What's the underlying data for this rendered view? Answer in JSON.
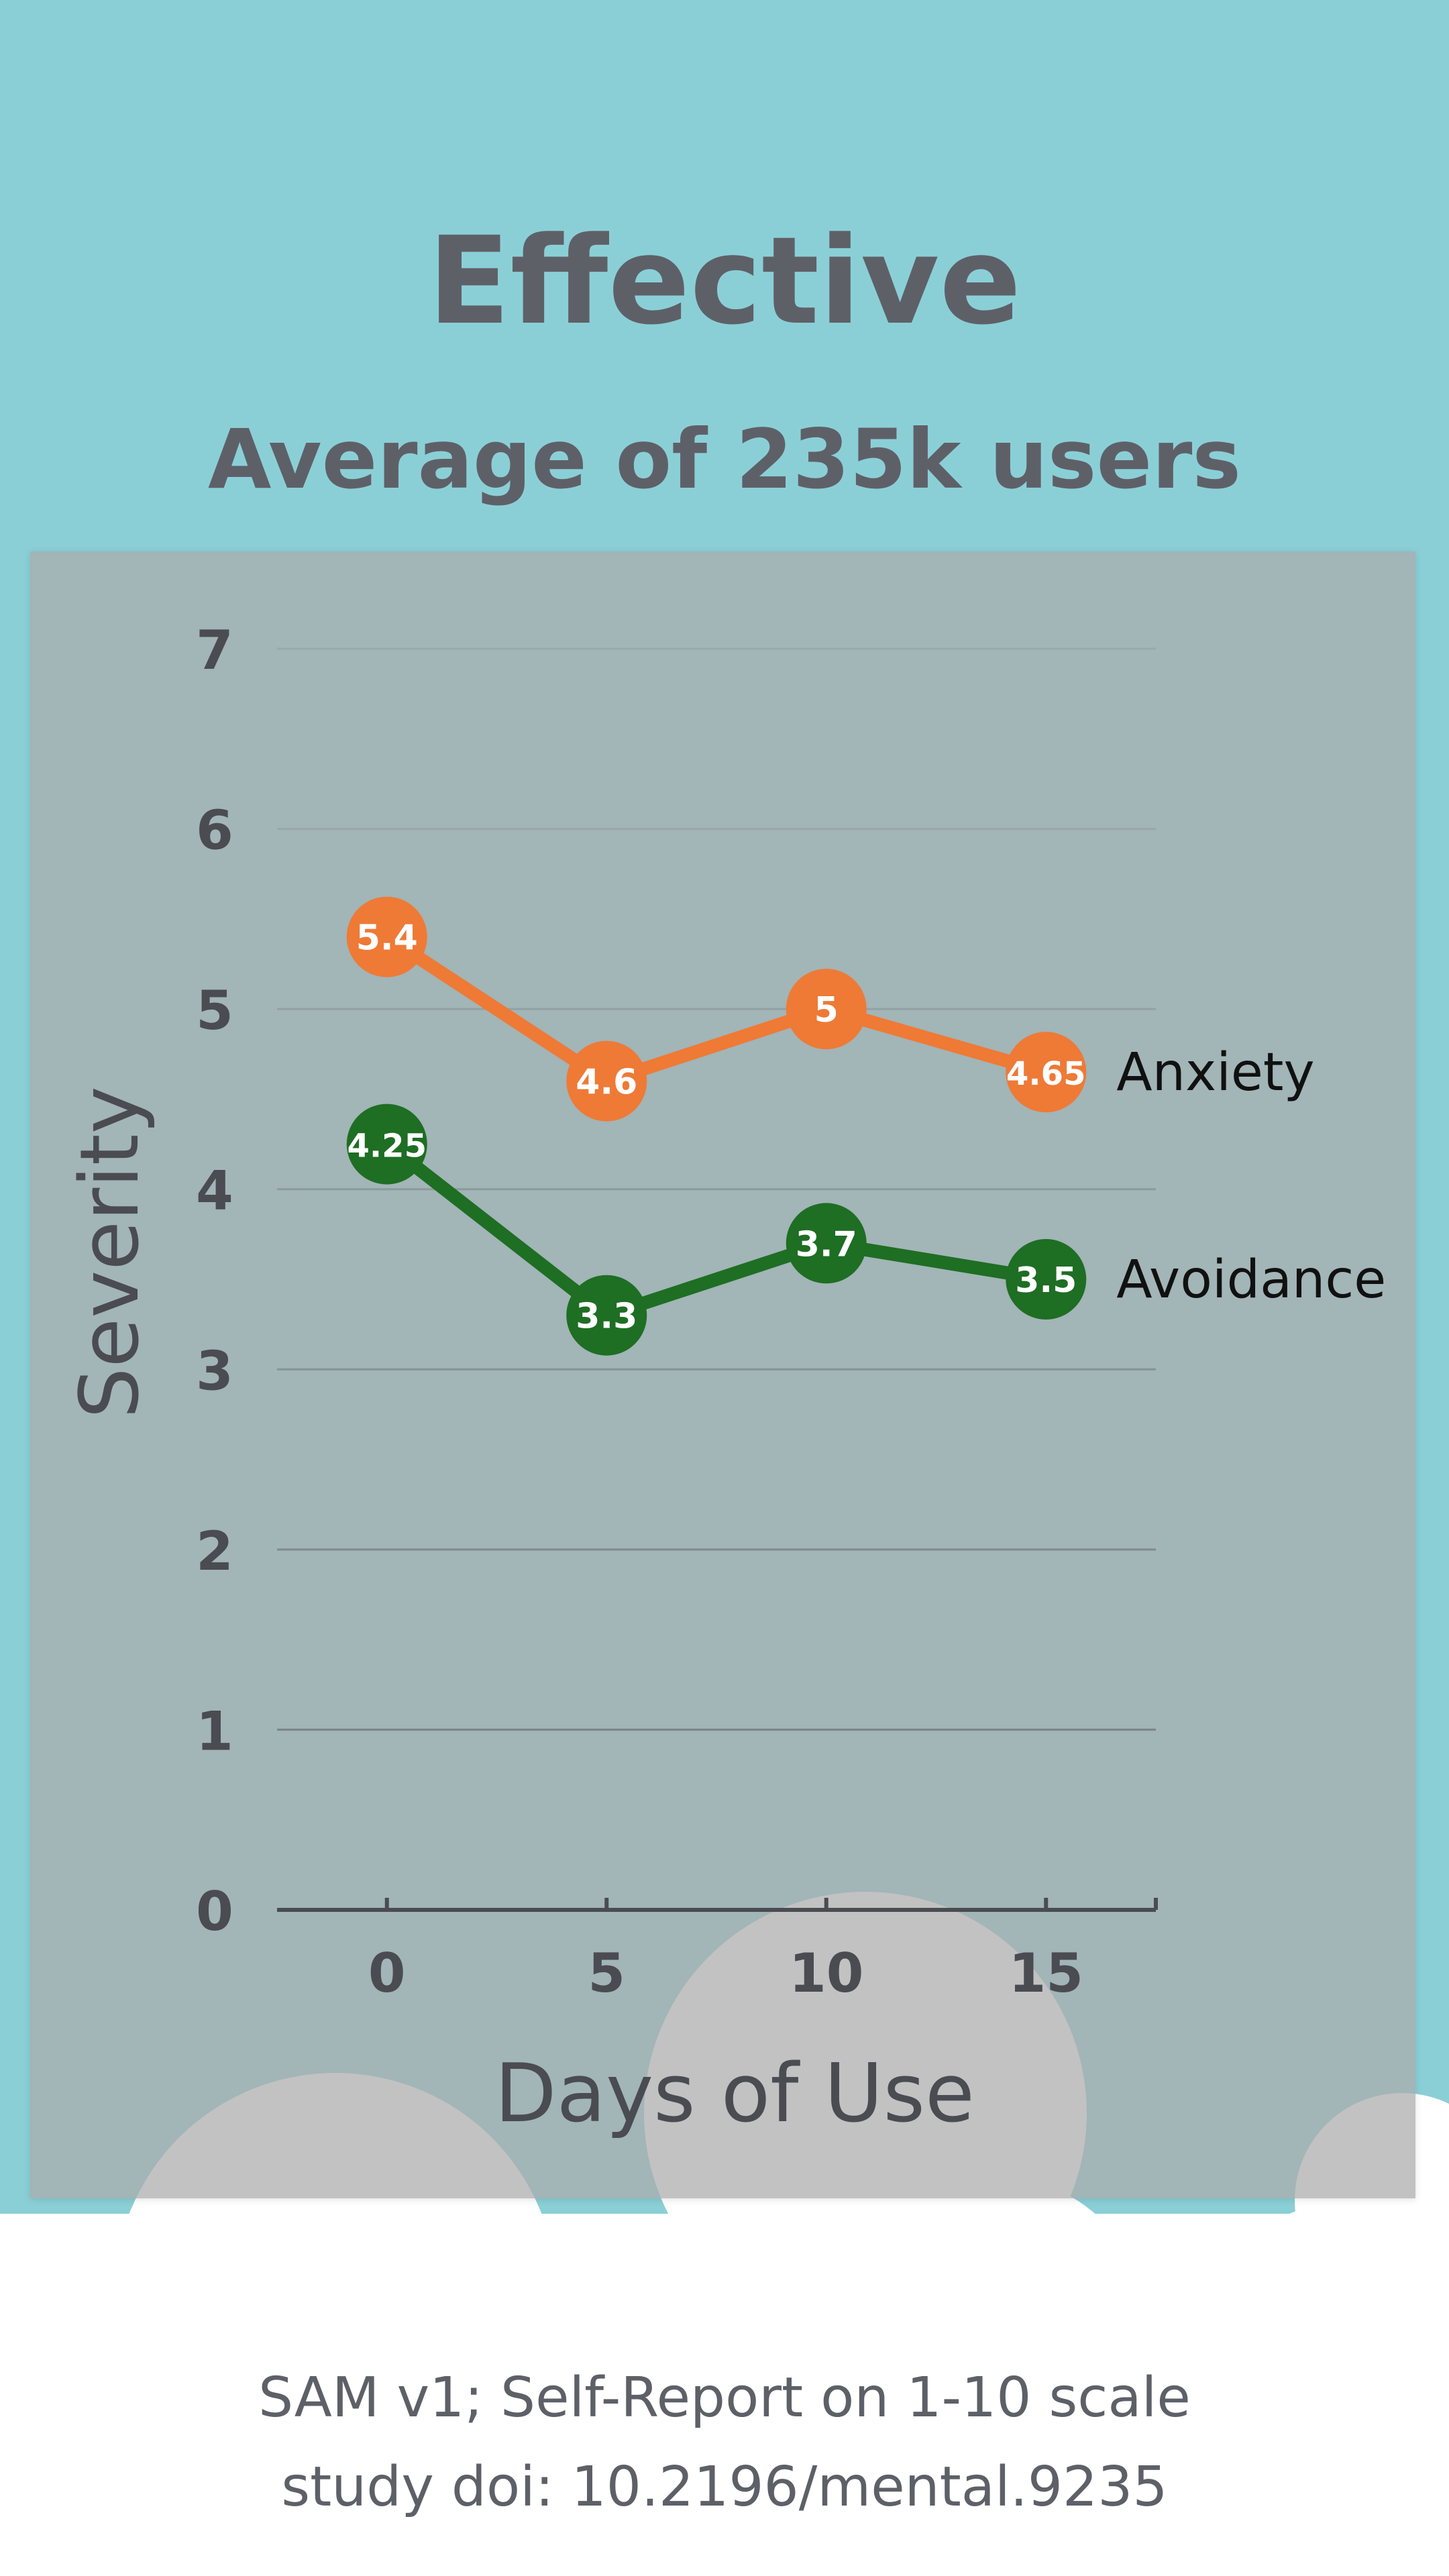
{
  "header": {
    "title": "Effective",
    "subtitle": "Average of 235k users"
  },
  "footer": {
    "line1": "SAM v1; Self-Report on 1-10 scale",
    "line2": "study doi: 10.2196/mental.9235"
  },
  "colors": {
    "background": "#8bcfd6",
    "cloud": "#ffffff",
    "anxiety": "#ee7a36",
    "avoidance": "#1e6e23",
    "axis": "#4a4c52",
    "grid": "#6e7476"
  },
  "chart_data": {
    "type": "line",
    "title": "",
    "xlabel": "Days of Use",
    "ylabel": "Severity",
    "x": [
      0,
      5,
      10,
      15
    ],
    "xticks": [
      "0",
      "5",
      "10",
      "15"
    ],
    "yticks": [
      "0",
      "1",
      "2",
      "3",
      "4",
      "5",
      "6",
      "7"
    ],
    "ylim": [
      0,
      7
    ],
    "xlim": [
      -2.5,
      17.5
    ],
    "grid": true,
    "legend": "inline-right",
    "series": [
      {
        "name": "Anxiety",
        "color": "#ee7a36",
        "values": [
          5.4,
          4.6,
          5,
          4.65
        ],
        "labels": [
          "5.4",
          "4.6",
          "5",
          "4.65"
        ]
      },
      {
        "name": "Avoidance",
        "color": "#1e6e23",
        "values": [
          4.25,
          3.3,
          3.7,
          3.5
        ],
        "labels": [
          "4.25",
          "3.3",
          "3.7",
          "3.5"
        ]
      }
    ]
  }
}
